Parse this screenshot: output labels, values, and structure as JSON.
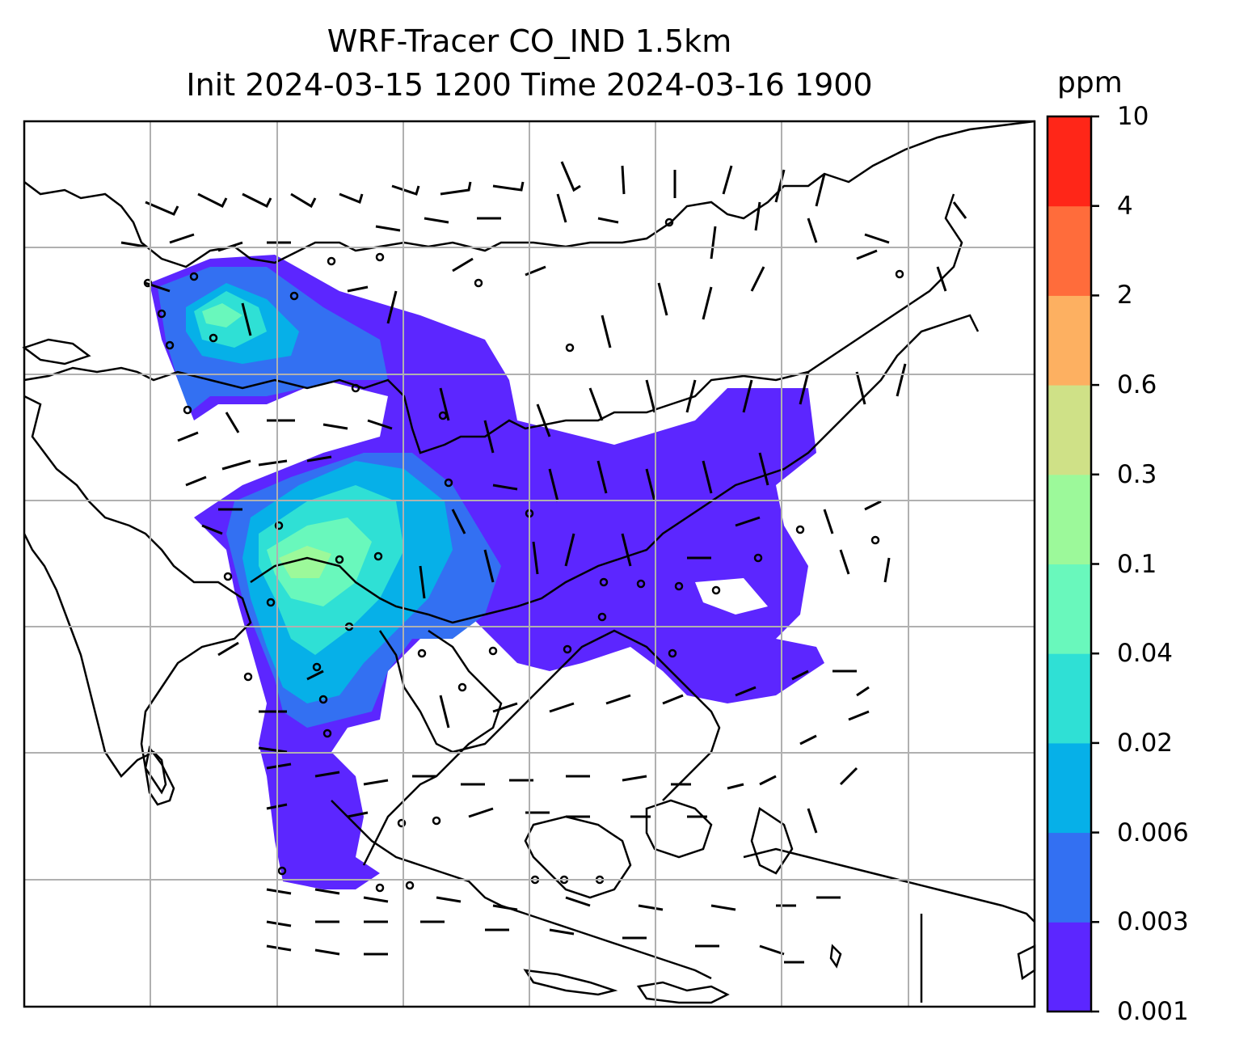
{
  "title": {
    "line1": "WRF-Tracer CO_IND 1.5km",
    "line2": "Init 2024-03-15 1200 Time 2024-03-16 1900"
  },
  "colorbar": {
    "unit": "ppm",
    "levels": [
      "0.001",
      "0.003",
      "0.006",
      "0.02",
      "0.04",
      "0.1",
      "0.3",
      "0.6",
      "2",
      "4",
      "10"
    ],
    "colors": [
      "#5c26ff",
      "#3370f2",
      "#06b0e8",
      "#2fe0d5",
      "#69f8bc",
      "#9cf99a",
      "#cfe187",
      "#fdb061",
      "#ff6c3b",
      "#ff2618"
    ]
  },
  "map": {
    "land_outline_color": "#000000",
    "gridline_color": "#b0b0b0",
    "wind_barb_color": "#000000"
  }
}
